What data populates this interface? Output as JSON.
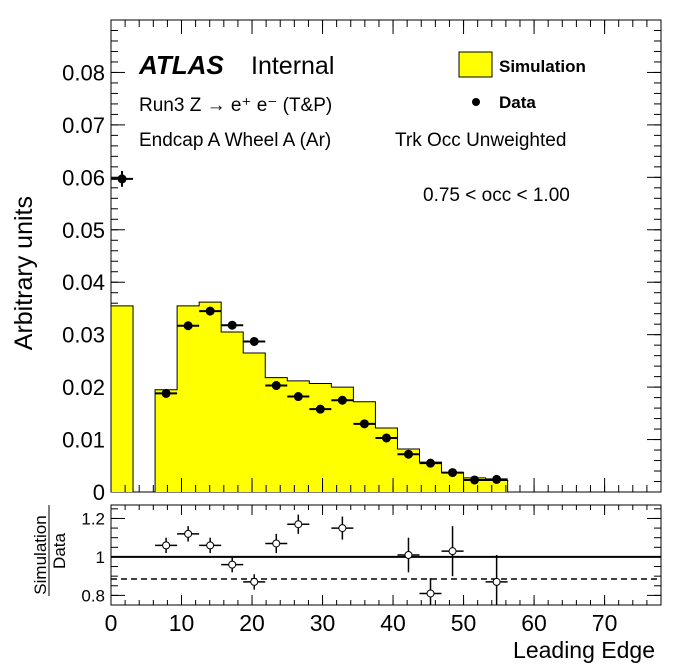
{
  "chart_data": {
    "type": "bar",
    "main": {
      "ylabel": "Arbitrary units",
      "ylim": [
        0,
        0.09
      ],
      "yticks": [
        "0",
        "0.01",
        "0.02",
        "0.03",
        "0.04",
        "0.05",
        "0.06",
        "0.07",
        "0.08"
      ],
      "atlas_label": "ATLAS",
      "internal_label": "Internal",
      "process_label": "Run3 Z → e⁺ e⁻ (T&P)",
      "region_label": "Endcap A Wheel A (Ar)",
      "weighting_label": "Trk Occ Unweighted",
      "occupancy_label": "0.75 < occ < 1.00",
      "legend": {
        "simulation": "Simulation",
        "data": "Data",
        "position": "top-right"
      },
      "simulation": {
        "name": "Simulation",
        "color": "#ffff00",
        "bin_width": 3.125,
        "bin_lows": [
          0.0,
          6.25,
          9.375,
          12.5,
          15.625,
          18.75,
          21.875,
          25.0,
          28.125,
          31.25,
          34.375,
          37.5,
          40.625,
          43.75,
          46.875,
          50.0,
          53.125
        ],
        "values": [
          0.0355,
          0.0195,
          0.0355,
          0.0362,
          0.0305,
          0.0265,
          0.0218,
          0.0212,
          0.0207,
          0.02,
          0.0172,
          0.0122,
          0.0082,
          0.0057,
          0.0037,
          0.0027,
          0.0022
        ]
      },
      "data": {
        "name": "Data",
        "color": "#000000",
        "x": [
          1.5625,
          7.8125,
          10.9375,
          14.0625,
          17.1875,
          20.3125,
          23.4375,
          26.5625,
          29.6875,
          32.8125,
          35.9375,
          39.0625,
          42.1875,
          45.3125,
          48.4375,
          51.5625,
          54.6875
        ],
        "y": [
          0.0597,
          0.0188,
          0.0317,
          0.0345,
          0.0318,
          0.0287,
          0.0203,
          0.0182,
          0.0158,
          0.0175,
          0.013,
          0.0103,
          0.0072,
          0.0055,
          0.0037,
          0.0023,
          0.0024
        ],
        "yerr": [
          0.0015,
          0.0006,
          0.0008,
          0.0008,
          0.0008,
          0.0008,
          0.0006,
          0.0006,
          0.0005,
          0.0006,
          0.0005,
          0.0004,
          0.0004,
          0.0003,
          0.0003,
          0.0002,
          0.0002
        ]
      }
    },
    "ratio": {
      "ylabel_top": "Simulation",
      "ylabel_bottom": "Data",
      "ylim": [
        0.75,
        1.27
      ],
      "yticks": [
        "0.8",
        "1",
        "1.2"
      ],
      "reference_line": 1.0,
      "dashed_line": 0.885,
      "x": [
        7.8125,
        10.9375,
        14.0625,
        17.1875,
        20.3125,
        23.4375,
        26.5625,
        32.8125,
        42.1875,
        45.3125,
        48.4375,
        54.6875
      ],
      "y": [
        1.06,
        1.12,
        1.06,
        0.96,
        0.87,
        1.07,
        1.17,
        1.15,
        1.01,
        0.81,
        1.03,
        0.87
      ],
      "yerr": [
        0.04,
        0.04,
        0.04,
        0.04,
        0.04,
        0.05,
        0.05,
        0.06,
        0.09,
        0.08,
        0.13,
        0.14
      ]
    },
    "xlabel": "Leading Edge",
    "xlim": [
      0,
      78
    ],
    "xticks": [
      "0",
      "10",
      "20",
      "30",
      "40",
      "50",
      "60",
      "70"
    ]
  }
}
